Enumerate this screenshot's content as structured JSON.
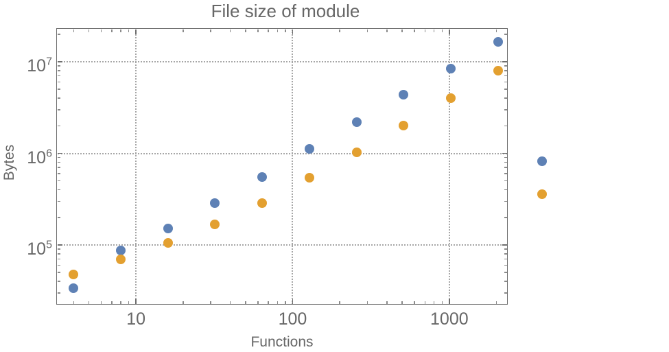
{
  "chart_data": {
    "type": "scatter",
    "title": "File size of module",
    "xlabel": "Functions",
    "ylabel": "Bytes",
    "x_scale": "log",
    "y_scale": "log",
    "xlim": [
      3.1,
      2360
    ],
    "ylim": [
      22300,
      23300000
    ],
    "grid": "gray dotted gridlines at decade ticks, framed plot with inward log ticks on all four sides",
    "legend_position": "outside right, color markers only (no visible text labels)",
    "x_ticks": [
      {
        "value": 10,
        "label": "10"
      },
      {
        "value": 100,
        "label": "100"
      },
      {
        "value": 1000,
        "label": "1000"
      }
    ],
    "x_minor_ticks": [
      4,
      5,
      6,
      7,
      8,
      9,
      20,
      30,
      40,
      50,
      60,
      70,
      80,
      90,
      200,
      300,
      400,
      500,
      600,
      700,
      800,
      900,
      2000
    ],
    "y_ticks": [
      {
        "value": 100000,
        "base": "10",
        "exp": "5"
      },
      {
        "value": 1000000,
        "base": "10",
        "exp": "6"
      },
      {
        "value": 10000000,
        "base": "10",
        "exp": "7"
      }
    ],
    "y_minor_ticks": [
      30000,
      40000,
      50000,
      60000,
      70000,
      80000,
      90000,
      200000,
      300000,
      400000,
      500000,
      600000,
      700000,
      800000,
      900000,
      2000000,
      3000000,
      4000000,
      5000000,
      6000000,
      7000000,
      8000000,
      9000000,
      20000000
    ],
    "series": [
      {
        "name": "blue",
        "color": "#5e81b5",
        "points": [
          [
            4,
            34000
          ],
          [
            8,
            87000
          ],
          [
            16,
            151000
          ],
          [
            32,
            286000
          ],
          [
            64,
            552000
          ],
          [
            128,
            1120000
          ],
          [
            256,
            2190000
          ],
          [
            512,
            4370000
          ],
          [
            1024,
            8400000
          ],
          [
            2048,
            16500000
          ]
        ]
      },
      {
        "name": "orange",
        "color": "#e3a030",
        "points": [
          [
            4,
            48000
          ],
          [
            8,
            70000
          ],
          [
            16,
            105000
          ],
          [
            32,
            168000
          ],
          [
            64,
            286000
          ],
          [
            128,
            540000
          ],
          [
            256,
            1030000
          ],
          [
            512,
            2010000
          ],
          [
            1024,
            4000000
          ],
          [
            2048,
            8000000
          ]
        ]
      }
    ]
  },
  "styles": {
    "background": "#ffffff",
    "text_color": "#676767",
    "frame_color": "#6e6e6e",
    "grid_color": "#a6a6a6",
    "minor_tick_color": "#8a8a8a"
  }
}
